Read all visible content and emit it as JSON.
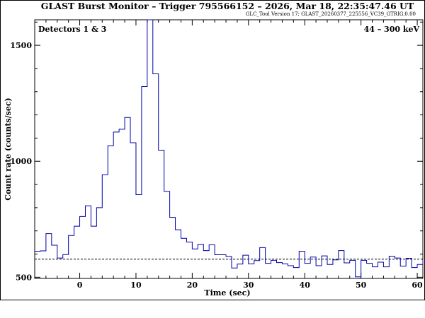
{
  "chart_data": {
    "type": "line",
    "title": "GLAST Burst Monitor  –  Trigger 795566152  –  2026, Mar 18, 22:35:47.46 UT",
    "subtitle": "GLC_Tool Version 17; GLAST_20260377_225556_VC39_GTRIG.0.00",
    "label_left": "Detectors 1 & 3",
    "label_right": "44 – 300 keV",
    "xlabel": "Time (sec)",
    "ylabel": "Count rate (counts/sec)",
    "xlim": [
      -8,
      61
    ],
    "ylim": [
      495,
      1610
    ],
    "xticks": [
      0,
      10,
      20,
      30,
      40,
      50,
      60
    ],
    "yticks": [
      500,
      1000,
      1500
    ],
    "background_level": 578,
    "series": [
      {
        "color": "#0000aa",
        "bin_edges": [
          -8,
          -7,
          -6,
          -5,
          -4,
          -3,
          -2,
          -1,
          0,
          1,
          2,
          3,
          4,
          5,
          6,
          7,
          8,
          9,
          10,
          11,
          12,
          13,
          14,
          15,
          16,
          17,
          18,
          19,
          20,
          21,
          22,
          23,
          24,
          25,
          26,
          27,
          28,
          29,
          30,
          31,
          32,
          33,
          34,
          35,
          36,
          37,
          38,
          39,
          40,
          41,
          42,
          43,
          44,
          45,
          46,
          47,
          48,
          49,
          50,
          51,
          52,
          53,
          54,
          55,
          56,
          57,
          58,
          59,
          60,
          61
        ],
        "values": [
          612,
          614,
          688,
          638,
          583,
          598,
          680,
          720,
          762,
          808,
          720,
          800,
          942,
          1067,
          1126,
          1138,
          1189,
          1080,
          856,
          1322,
          1610,
          1377,
          1048,
          870,
          758,
          705,
          668,
          652,
          622,
          642,
          615,
          640,
          597,
          597,
          590,
          540,
          557,
          595,
          558,
          572,
          628,
          560,
          573,
          563,
          558,
          550,
          542,
          612,
          560,
          587,
          550,
          592,
          555,
          575,
          615,
          562,
          573,
          502,
          573,
          560,
          545,
          565,
          545,
          591,
          583,
          548,
          582,
          542,
          555,
          575
        ]
      }
    ]
  }
}
